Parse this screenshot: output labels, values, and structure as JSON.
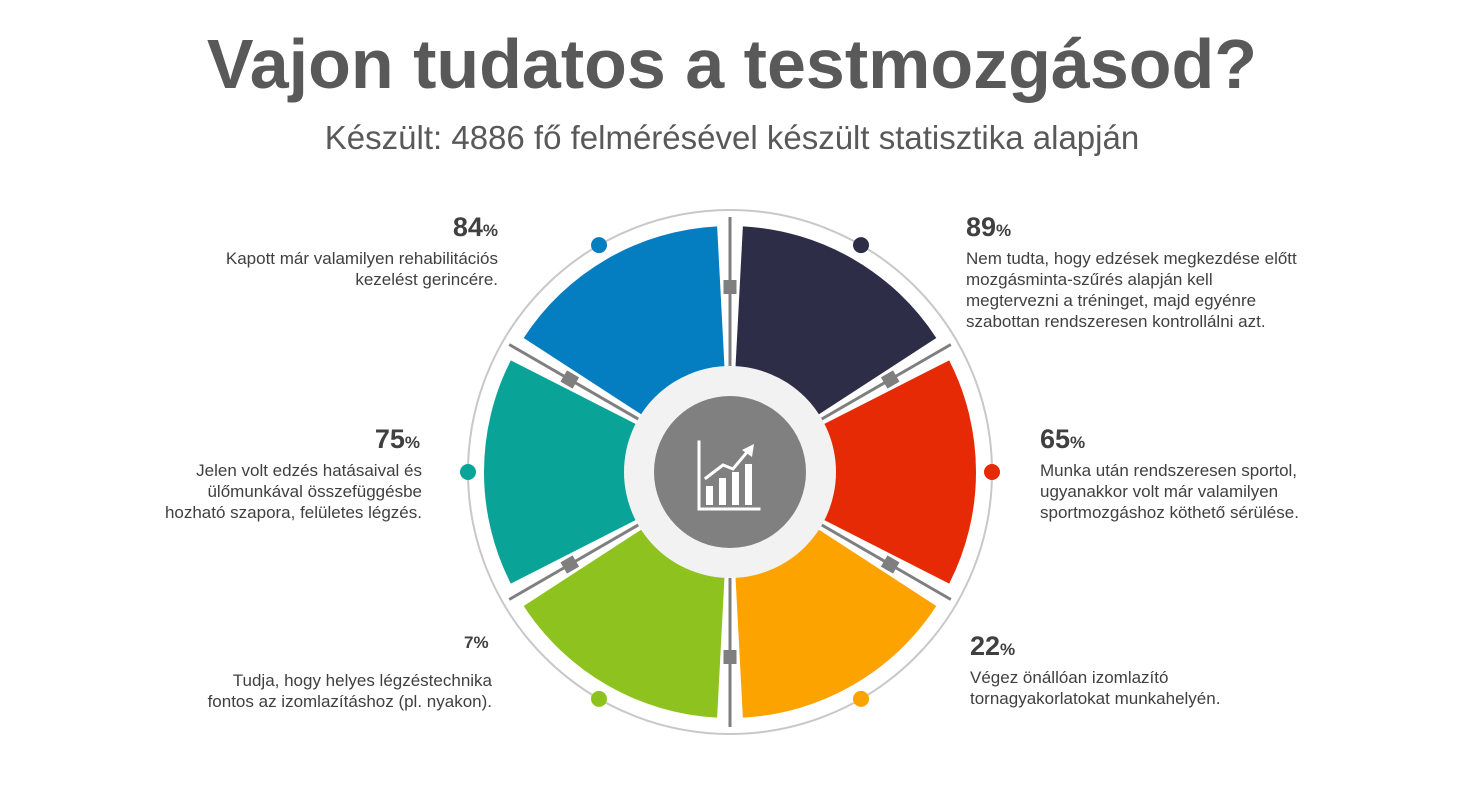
{
  "header": {
    "title": "Vajon tudatos a testmozgásod?",
    "subtitle": "Készült: 4886 fő felmérésével készült statisztika alapján"
  },
  "center_icon": "growth-chart-icon",
  "colors": {
    "ring": "#c8c8c8",
    "connector": "#7f7f7f",
    "hub": "#808080",
    "hub_ring": "#f2f2f2"
  },
  "chart_data": {
    "type": "radial-infographic",
    "title": "Vajon tudatos a testmozgásod?",
    "subtitle": "Készült: 4886 fő felmérésével készült statisztika alapján",
    "unit": "%",
    "segments": [
      {
        "value": 89,
        "label": "Nem tudta, hogy edzések megkezdése előtt mozgásminta-szűrés alapján kell megtervezni a tréninget, majd egyénre szabottan rendszeresen kontrollálni azt.",
        "color": "#2e2d48"
      },
      {
        "value": 65,
        "label": "Munka után rendszeresen sportol, ugyanakkor volt már valamilyen sportmozgáshoz köthető sérülése.",
        "color": "#e52a05"
      },
      {
        "value": 22,
        "label": "Végez önállóan izomlazító tornagyakorlatokat munkahelyén.",
        "color": "#fca300"
      },
      {
        "value": 7,
        "label": "Tudja, hogy helyes légzéstechnika fontos az izomlazításhoz (pl. nyakon).",
        "color": "#8ec31f"
      },
      {
        "value": 75,
        "label": "Jelen volt edzés hatásaival és ülőmunkával összefüggésbe hozható szapora, felületes légzés.",
        "color": "#0aa398"
      },
      {
        "value": 84,
        "label": "Kapott már valamilyen rehabilitációs kezelést gerincére.",
        "color": "#057dc1"
      }
    ]
  }
}
